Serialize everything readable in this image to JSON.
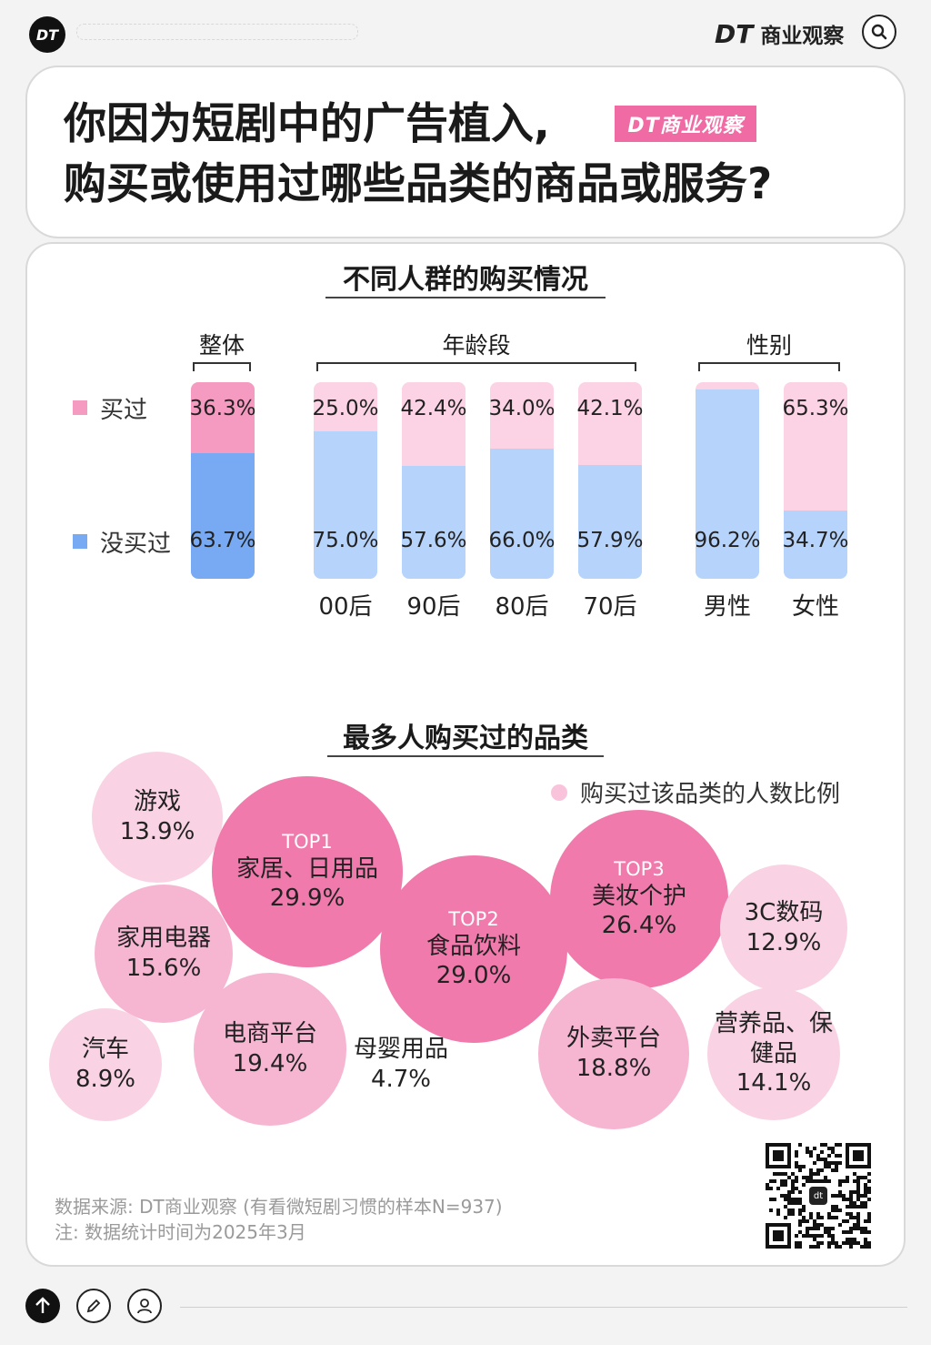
{
  "topbar": {
    "logo": "DT",
    "brand_dt": "DT",
    "brand_name": "商业观察"
  },
  "header": {
    "title_line1": "你因为短剧中的广告植入,",
    "title_line2": "购买或使用过哪些品类的商品或服务?",
    "badge": "DT商业观察"
  },
  "section1": {
    "title": "不同人群的购买情况",
    "groups": [
      "整体",
      "年龄段",
      "性别"
    ]
  },
  "legend": {
    "bought": "买过",
    "not_bought": "没买过"
  },
  "colors": {
    "bought_dark": "#f59ac0",
    "bought_light": "#fbd3e4",
    "not_dark": "#77aaf2",
    "not_light": "#b5d3fb",
    "bubble_light": "#f9d3e3",
    "bubble_mid": "#f6b6d2",
    "bubble_top": "#f07aac"
  },
  "chart_data": [
    {
      "type": "bar",
      "stacked": true,
      "categories": [
        "整体",
        "00后",
        "90后",
        "80后",
        "70后",
        "男性",
        "女性"
      ],
      "category_labels": [
        "00后",
        "90后",
        "80后",
        "70后",
        "男性",
        "女性"
      ],
      "series": [
        {
          "name": "买过",
          "values": [
            36.3,
            25.0,
            42.4,
            34.0,
            42.1,
            3.8,
            65.3
          ],
          "labels": [
            "36.3%",
            "25.0%",
            "42.4%",
            "34.0%",
            "42.1%",
            "",
            "65.3%"
          ]
        },
        {
          "name": "没买过",
          "values": [
            63.7,
            75.0,
            57.6,
            66.0,
            57.9,
            96.2,
            34.7
          ],
          "labels": [
            "63.7%",
            "75.0%",
            "57.6%",
            "66.0%",
            "57.9%",
            "96.2%",
            "34.7%"
          ]
        }
      ],
      "ylim": [
        0,
        100
      ]
    },
    {
      "type": "bubble",
      "title": "最多人购买过的品类",
      "legend": "购买过该品类的人数比例",
      "items": [
        {
          "name": "游戏",
          "value": 13.9,
          "label": "13.9%",
          "rank": ""
        },
        {
          "name": "家居、日用品",
          "value": 29.9,
          "label": "29.9%",
          "rank": "TOP1"
        },
        {
          "name": "食品饮料",
          "value": 29.0,
          "label": "29.0%",
          "rank": "TOP2"
        },
        {
          "name": "美妆个护",
          "value": 26.4,
          "label": "26.4%",
          "rank": "TOP3"
        },
        {
          "name": "3C数码",
          "value": 12.9,
          "label": "12.9%",
          "rank": ""
        },
        {
          "name": "家用电器",
          "value": 15.6,
          "label": "15.6%",
          "rank": ""
        },
        {
          "name": "汽车",
          "value": 8.9,
          "label": "8.9%",
          "rank": ""
        },
        {
          "name": "电商平台",
          "value": 19.4,
          "label": "19.4%",
          "rank": ""
        },
        {
          "name": "母婴用品",
          "value": 4.7,
          "label": "4.7%",
          "rank": ""
        },
        {
          "name": "外卖平台",
          "value": 18.8,
          "label": "18.8%",
          "rank": ""
        },
        {
          "name": "营养品、保健品",
          "value": 14.1,
          "label": "14.1%",
          "rank": ""
        }
      ]
    }
  ],
  "notes": {
    "source": "数据来源: DT商业观察 (有看微短剧习惯的样本N=937)",
    "date": "注: 数据统计时间为2025年3月"
  },
  "icons": {
    "qr_center": "dt"
  }
}
